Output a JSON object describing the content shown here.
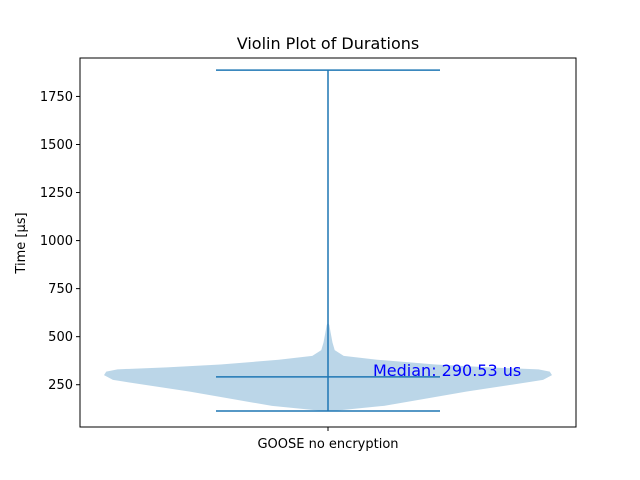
{
  "chart_data": {
    "type": "violin",
    "title": "Violin Plot of Durations",
    "xlabel": "",
    "ylabel": "Time [μs]",
    "ylim": [
      30,
      1950
    ],
    "yticks": [
      250,
      500,
      750,
      1000,
      1250,
      1500,
      1750
    ],
    "categories": [
      "GOOSE no encryption"
    ],
    "series": [
      {
        "category": "GOOSE no encryption",
        "min": 113,
        "max": 1887,
        "median": 290.53,
        "density_profile": [
          {
            "y": 113,
            "half_width": 0.02
          },
          {
            "y": 140,
            "half_width": 0.25
          },
          {
            "y": 180,
            "half_width": 0.45
          },
          {
            "y": 215,
            "half_width": 0.62
          },
          {
            "y": 250,
            "half_width": 0.82
          },
          {
            "y": 275,
            "half_width": 0.96
          },
          {
            "y": 300,
            "half_width": 1.0
          },
          {
            "y": 318,
            "half_width": 0.99
          },
          {
            "y": 330,
            "half_width": 0.94
          },
          {
            "y": 340,
            "half_width": 0.72
          },
          {
            "y": 355,
            "half_width": 0.48
          },
          {
            "y": 380,
            "half_width": 0.22
          },
          {
            "y": 400,
            "half_width": 0.07
          },
          {
            "y": 430,
            "half_width": 0.03
          },
          {
            "y": 470,
            "half_width": 0.02
          },
          {
            "y": 520,
            "half_width": 0.012
          },
          {
            "y": 560,
            "half_width": 0.006
          },
          {
            "y": 575,
            "half_width": 0.0
          }
        ]
      }
    ],
    "annotation": "Median: 290.53 us",
    "colors": {
      "body": "#1f77b4",
      "body_opacity": 0.3,
      "lines": "#1f77b4",
      "annotation": "#0000ff"
    },
    "grid": false
  }
}
